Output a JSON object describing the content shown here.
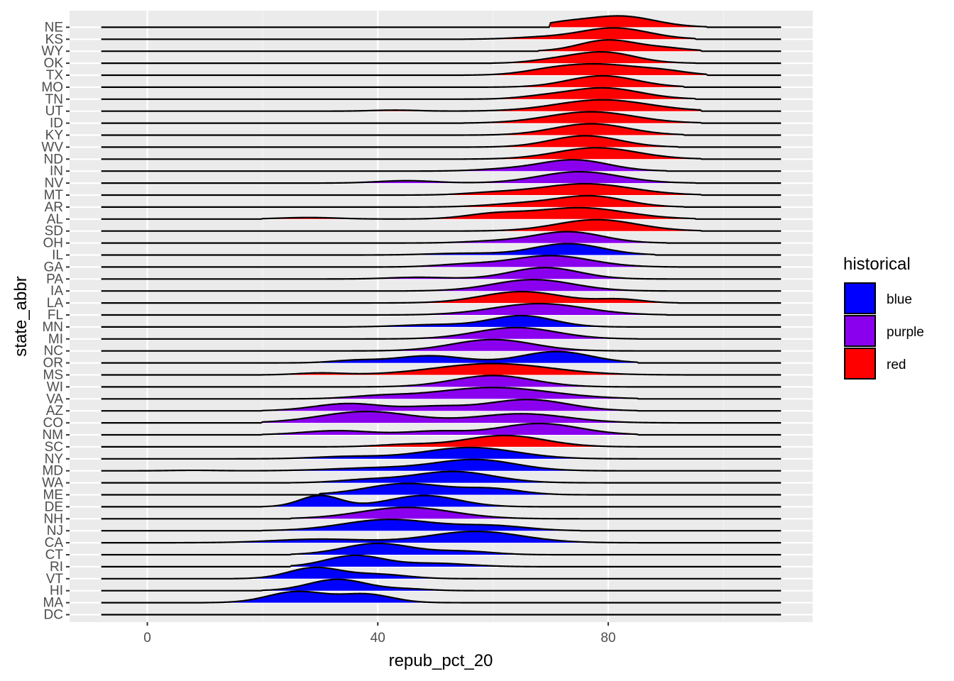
{
  "colors": {
    "panel_bg": "#EBEBEB",
    "grid_major": "#FFFFFF",
    "grid_minor": "#F5F5F5",
    "tick_text": "#4D4D4D",
    "outline": "#000000"
  },
  "chart_data": {
    "type": "ridgeline",
    "xlabel": "repub_pct_20",
    "ylabel": "state_abbr",
    "xlim": [
      -13.5,
      115.5
    ],
    "x_ticks": [
      0,
      40,
      80
    ],
    "x_minor_ticks": [
      20,
      60,
      100
    ],
    "x_range": [
      -8,
      110
    ],
    "legend": {
      "title": "historical",
      "placement": "right",
      "entries": [
        {
          "label": "blue",
          "color": "#0000FF"
        },
        {
          "label": "purple",
          "color": "#8A00EE"
        },
        {
          "label": "red",
          "color": "#FF0000"
        }
      ]
    },
    "categories": [
      "NE",
      "KS",
      "WY",
      "OK",
      "TX",
      "MO",
      "TN",
      "UT",
      "ID",
      "KY",
      "WV",
      "ND",
      "IN",
      "NV",
      "MT",
      "AR",
      "AL",
      "SD",
      "OH",
      "IL",
      "GA",
      "PA",
      "IA",
      "LA",
      "FL",
      "MN",
      "MI",
      "NC",
      "OR",
      "MS",
      "WI",
      "VA",
      "AZ",
      "CO",
      "NM",
      "SC",
      "NY",
      "MD",
      "WA",
      "ME",
      "DE",
      "NH",
      "NJ",
      "CA",
      "CT",
      "RI",
      "VT",
      "HI",
      "MA",
      "DC"
    ],
    "series": [
      {
        "state": "NE",
        "group": "red",
        "range": [
          70,
          97
        ],
        "peaks": [
          [
            82,
            1.0,
            6
          ],
          [
            72,
            0.3,
            4
          ]
        ]
      },
      {
        "state": "KS",
        "group": "red",
        "range": [
          55,
          95
        ],
        "peaks": [
          [
            81,
            1.0,
            6
          ],
          [
            68,
            0.15,
            5
          ]
        ]
      },
      {
        "state": "WY",
        "group": "red",
        "range": [
          68,
          96
        ],
        "peaks": [
          [
            80,
            1.0,
            5
          ],
          [
            90,
            0.25,
            4
          ]
        ]
      },
      {
        "state": "OK",
        "group": "red",
        "range": [
          60,
          95
        ],
        "peaks": [
          [
            79,
            1.0,
            5.5
          ],
          [
            70,
            0.2,
            4
          ]
        ]
      },
      {
        "state": "TX",
        "group": "red",
        "range": [
          55,
          97
        ],
        "peaks": [
          [
            79,
            0.75,
            7
          ],
          [
            70,
            0.25,
            5
          ],
          [
            90,
            0.2,
            4
          ]
        ]
      },
      {
        "state": "MO",
        "group": "red",
        "range": [
          55,
          93
        ],
        "peaks": [
          [
            79,
            1.0,
            6
          ]
        ]
      },
      {
        "state": "TN",
        "group": "red",
        "range": [
          55,
          95
        ],
        "peaks": [
          [
            79,
            1.0,
            6.5
          ],
          [
            68,
            0.15,
            4
          ]
        ]
      },
      {
        "state": "UT",
        "group": "red",
        "range": [
          20,
          96
        ],
        "peaks": [
          [
            79,
            0.9,
            8
          ],
          [
            43,
            0.08,
            4
          ]
        ]
      },
      {
        "state": "ID",
        "group": "red",
        "range": [
          55,
          96
        ],
        "peaks": [
          [
            77,
            0.95,
            7.5
          ]
        ]
      },
      {
        "state": "KY",
        "group": "red",
        "range": [
          55,
          93
        ],
        "peaks": [
          [
            77,
            1.0,
            6.5
          ]
        ]
      },
      {
        "state": "WV",
        "group": "red",
        "range": [
          55,
          92
        ],
        "peaks": [
          [
            76,
            1.0,
            6
          ]
        ]
      },
      {
        "state": "ND",
        "group": "red",
        "range": [
          55,
          96
        ],
        "peaks": [
          [
            78,
            0.95,
            7
          ]
        ]
      },
      {
        "state": "IN",
        "group": "purple",
        "range": [
          45,
          90
        ],
        "peaks": [
          [
            74,
            1.0,
            6
          ],
          [
            62,
            0.15,
            5
          ]
        ]
      },
      {
        "state": "NV",
        "group": "purple",
        "range": [
          30,
          95
        ],
        "peaks": [
          [
            75,
            0.95,
            7
          ],
          [
            45,
            0.2,
            5
          ]
        ]
      },
      {
        "state": "MT",
        "group": "red",
        "range": [
          45,
          96
        ],
        "peaks": [
          [
            76,
            0.85,
            8
          ],
          [
            60,
            0.15,
            5
          ]
        ]
      },
      {
        "state": "AR",
        "group": "red",
        "range": [
          45,
          93
        ],
        "peaks": [
          [
            77,
            1.0,
            6
          ],
          [
            65,
            0.3,
            6
          ]
        ]
      },
      {
        "state": "AL",
        "group": "red",
        "range": [
          20,
          95
        ],
        "peaks": [
          [
            75,
            0.75,
            8
          ],
          [
            60,
            0.3,
            5
          ],
          [
            28,
            0.1,
            5
          ]
        ]
      },
      {
        "state": "SD",
        "group": "red",
        "range": [
          55,
          96
        ],
        "peaks": [
          [
            78,
            0.9,
            7
          ]
        ]
      },
      {
        "state": "OH",
        "group": "purple",
        "range": [
          45,
          90
        ],
        "peaks": [
          [
            73,
            1.0,
            6
          ],
          [
            60,
            0.15,
            5
          ]
        ]
      },
      {
        "state": "IL",
        "group": "blue",
        "range": [
          35,
          88
        ],
        "peaks": [
          [
            73,
            1.0,
            6
          ],
          [
            55,
            0.15,
            6
          ]
        ]
      },
      {
        "state": "GA",
        "group": "purple",
        "range": [
          30,
          92
        ],
        "peaks": [
          [
            70,
            0.95,
            7
          ],
          [
            55,
            0.2,
            5
          ]
        ]
      },
      {
        "state": "PA",
        "group": "purple",
        "range": [
          30,
          90
        ],
        "peaks": [
          [
            69,
            1.0,
            6
          ],
          [
            47,
            0.15,
            5
          ]
        ]
      },
      {
        "state": "IA",
        "group": "purple",
        "range": [
          45,
          90
        ],
        "peaks": [
          [
            67,
            0.95,
            7
          ]
        ]
      },
      {
        "state": "LA",
        "group": "red",
        "range": [
          30,
          92
        ],
        "peaks": [
          [
            65,
            0.95,
            7
          ],
          [
            82,
            0.3,
            4
          ]
        ]
      },
      {
        "state": "FL",
        "group": "purple",
        "range": [
          30,
          90
        ],
        "peaks": [
          [
            68,
            0.95,
            8
          ]
        ]
      },
      {
        "state": "MN",
        "group": "blue",
        "range": [
          35,
          85
        ],
        "peaks": [
          [
            65,
            1.0,
            5.5
          ],
          [
            50,
            0.2,
            6
          ]
        ]
      },
      {
        "state": "MI",
        "group": "purple",
        "range": [
          35,
          85
        ],
        "peaks": [
          [
            64,
            1.0,
            7
          ]
        ]
      },
      {
        "state": "NC",
        "group": "purple",
        "range": [
          35,
          85
        ],
        "peaks": [
          [
            60,
            0.95,
            7
          ]
        ]
      },
      {
        "state": "OR",
        "group": "blue",
        "range": [
          20,
          85
        ],
        "peaks": [
          [
            71,
            0.95,
            6
          ],
          [
            49,
            0.6,
            6
          ],
          [
            36,
            0.2,
            4
          ]
        ]
      },
      {
        "state": "MS",
        "group": "red",
        "range": [
          20,
          93
        ],
        "peaks": [
          [
            60,
            0.9,
            10
          ],
          [
            30,
            0.15,
            4
          ]
        ]
      },
      {
        "state": "WI",
        "group": "purple",
        "range": [
          35,
          85
        ],
        "peaks": [
          [
            60,
            1.0,
            7
          ]
        ]
      },
      {
        "state": "VA",
        "group": "purple",
        "range": [
          25,
          85
        ],
        "peaks": [
          [
            60,
            0.95,
            10
          ],
          [
            40,
            0.2,
            5
          ]
        ]
      },
      {
        "state": "AZ",
        "group": "purple",
        "range": [
          20,
          85
        ],
        "peaks": [
          [
            66,
            0.85,
            7
          ],
          [
            35,
            0.55,
            6
          ],
          [
            50,
            0.3,
            5
          ]
        ]
      },
      {
        "state": "CO",
        "group": "purple",
        "range": [
          20,
          92
        ],
        "peaks": [
          [
            38,
            0.75,
            8
          ],
          [
            65,
            0.6,
            8
          ]
        ]
      },
      {
        "state": "NM",
        "group": "purple",
        "range": [
          20,
          85
        ],
        "peaks": [
          [
            68,
            0.95,
            7
          ],
          [
            33,
            0.35,
            6
          ],
          [
            50,
            0.3,
            5
          ]
        ]
      },
      {
        "state": "SC",
        "group": "red",
        "range": [
          30,
          85
        ],
        "peaks": [
          [
            62,
            1.0,
            7
          ],
          [
            45,
            0.2,
            5
          ]
        ]
      },
      {
        "state": "NY",
        "group": "blue",
        "range": [
          10,
          85
        ],
        "peaks": [
          [
            56,
            1.0,
            8
          ],
          [
            35,
            0.2,
            6
          ]
        ]
      },
      {
        "state": "MD",
        "group": "blue",
        "range": [
          -5,
          85
        ],
        "peaks": [
          [
            57,
            0.95,
            7
          ],
          [
            40,
            0.25,
            8
          ],
          [
            8,
            0.04,
            4
          ]
        ]
      },
      {
        "state": "WA",
        "group": "blue",
        "range": [
          25,
          80
        ],
        "peaks": [
          [
            53,
            1.0,
            7
          ],
          [
            38,
            0.25,
            5
          ]
        ]
      },
      {
        "state": "ME",
        "group": "blue",
        "range": [
          30,
          80
        ],
        "peaks": [
          [
            45,
            1.0,
            7
          ],
          [
            60,
            0.5,
            5
          ]
        ]
      },
      {
        "state": "DE",
        "group": "blue",
        "range": [
          20,
          75
        ],
        "peaks": [
          [
            30,
            0.75,
            3.5
          ],
          [
            48,
            0.75,
            6
          ]
        ]
      },
      {
        "state": "NH",
        "group": "purple",
        "range": [
          25,
          75
        ],
        "peaks": [
          [
            45,
            1.0,
            8
          ]
        ]
      },
      {
        "state": "NJ",
        "group": "blue",
        "range": [
          20,
          75
        ],
        "peaks": [
          [
            42,
            0.95,
            8
          ],
          [
            60,
            0.4,
            6
          ]
        ]
      },
      {
        "state": "CA",
        "group": "blue",
        "range": [
          5,
          85
        ],
        "peaks": [
          [
            57,
            0.95,
            8
          ],
          [
            30,
            0.3,
            8
          ]
        ]
      },
      {
        "state": "CT",
        "group": "blue",
        "range": [
          25,
          70
        ],
        "peaks": [
          [
            40,
            1.0,
            6
          ],
          [
            55,
            0.3,
            5
          ]
        ]
      },
      {
        "state": "RI",
        "group": "blue",
        "range": [
          25,
          70
        ],
        "peaks": [
          [
            36,
            1.0,
            5
          ],
          [
            50,
            0.3,
            6
          ]
        ]
      },
      {
        "state": "VT",
        "group": "blue",
        "range": [
          15,
          65
        ],
        "peaks": [
          [
            29,
            1.0,
            4.5
          ],
          [
            40,
            0.4,
            5
          ]
        ]
      },
      {
        "state": "HI",
        "group": "blue",
        "range": [
          20,
          65
        ],
        "peaks": [
          [
            33,
            1.0,
            5
          ],
          [
            45,
            0.15,
            4
          ]
        ]
      },
      {
        "state": "MA",
        "group": "blue",
        "range": [
          10,
          60
        ],
        "peaks": [
          [
            26,
            1.0,
            5
          ],
          [
            38,
            0.75,
            4.5
          ]
        ]
      },
      {
        "state": "DC",
        "group": "blue",
        "range": [
          5,
          6
        ],
        "peaks": [
          [
            5,
            0.0,
            1
          ]
        ]
      }
    ]
  }
}
